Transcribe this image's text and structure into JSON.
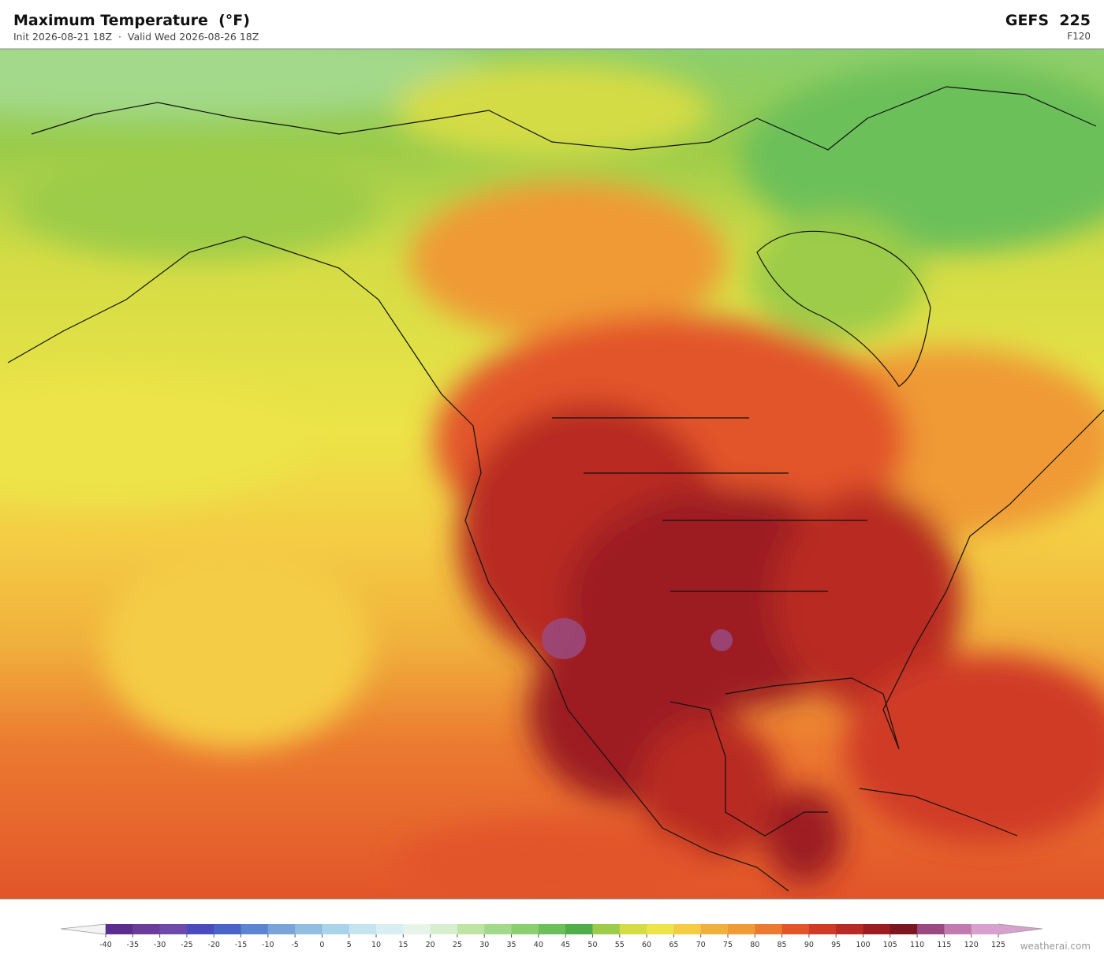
{
  "header": {
    "title": "Maximum Temperature  (°F)",
    "subtitle": "Init 2026-08-21 18Z  ·  Valid Wed 2026-08-26 18Z",
    "model": "GEFS  225",
    "forecast_hour": "F120"
  },
  "colorbar": {
    "ticks": [
      -40,
      -35,
      -30,
      -25,
      -20,
      -15,
      -10,
      -5,
      0,
      5,
      10,
      15,
      20,
      25,
      30,
      35,
      40,
      45,
      50,
      55,
      60,
      65,
      70,
      75,
      80,
      85,
      90,
      95,
      100,
      105,
      110,
      115,
      120,
      125
    ],
    "colors": [
      "#5a2d8e",
      "#6a3d9a",
      "#6e4aaa",
      "#4b4bbf",
      "#4a63c8",
      "#5c84d0",
      "#7aa3d8",
      "#90bde0",
      "#a8d3ea",
      "#c4e4f0",
      "#d8eef2",
      "#e6f4ea",
      "#d7efcf",
      "#bfe3a3",
      "#a3d98a",
      "#8ccf6e",
      "#6cc05a",
      "#4fae4a",
      "#9ccc4a",
      "#d4dc44",
      "#ece448",
      "#f4cc44",
      "#f0b03c",
      "#ef9a36",
      "#eb7a30",
      "#e2552a",
      "#d03a26",
      "#b82a24",
      "#9c1c22",
      "#7c1620",
      "#9a4a80",
      "#c07ab0",
      "#d8a0cc"
    ]
  },
  "footer": {
    "credit": "weatherai.com"
  }
}
